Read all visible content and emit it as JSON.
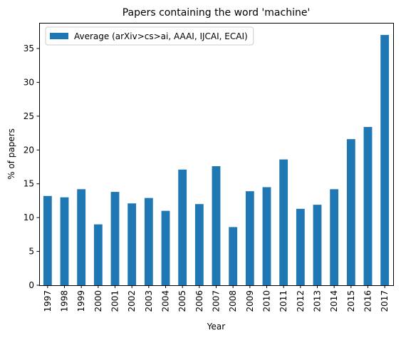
{
  "chart_data": {
    "type": "bar",
    "title": "Papers containing the word 'machine'",
    "xlabel": "Year",
    "ylabel": "% of papers",
    "categories": [
      "1997",
      "1998",
      "1999",
      "2000",
      "2001",
      "2002",
      "2003",
      "2004",
      "2005",
      "2006",
      "2007",
      "2008",
      "2009",
      "2010",
      "2011",
      "2012",
      "2013",
      "2014",
      "2015",
      "2016",
      "2017"
    ],
    "series": [
      {
        "name": "Average (arXiv>cs>ai, AAAI, IJCAI, ECAI)",
        "color": "#1f77b4",
        "values": [
          13.2,
          13.0,
          14.2,
          9.0,
          13.8,
          12.1,
          12.9,
          11.0,
          17.1,
          12.0,
          17.6,
          8.6,
          13.9,
          14.5,
          18.6,
          11.3,
          11.9,
          14.2,
          21.6,
          23.4,
          37.0
        ]
      }
    ],
    "yticks": [
      0,
      5,
      10,
      15,
      20,
      25,
      30,
      35
    ],
    "ylim": [
      0,
      38.8
    ],
    "grid": false,
    "legend_position": "top-left"
  }
}
